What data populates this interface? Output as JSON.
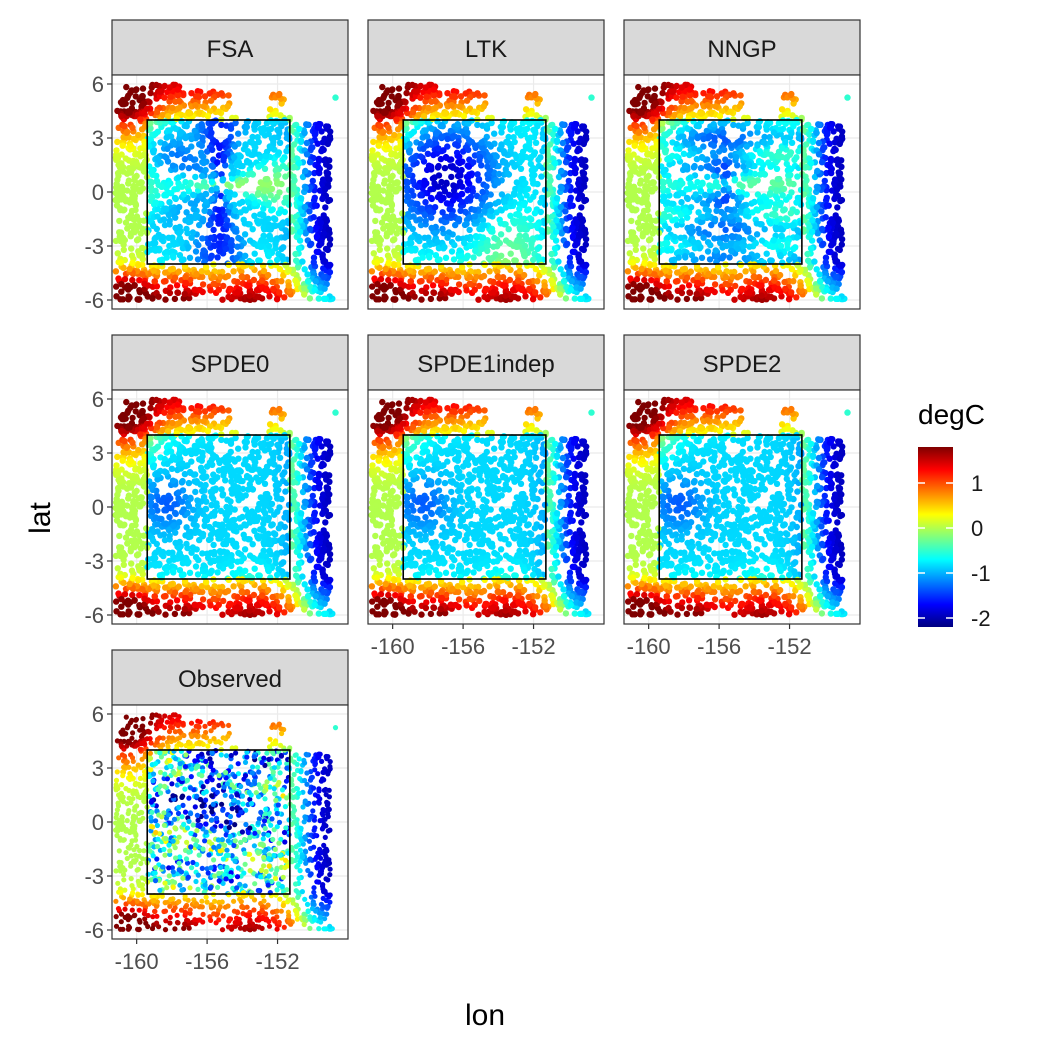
{
  "chart_data": {
    "type": "heatmap",
    "layout": "faceted 3-column grid of spatial scatter maps",
    "x": {
      "label": "lon",
      "range": [
        -161.4,
        -148.0
      ],
      "ticks": [
        -160,
        -156,
        -152
      ],
      "tick_labels": [
        "-160",
        "-156",
        "-152"
      ]
    },
    "y": {
      "label": "lat",
      "range": [
        -6.5,
        6.5
      ],
      "ticks": [
        6,
        3,
        0,
        -3,
        -6
      ],
      "tick_labels": [
        "6",
        "3",
        "0",
        "-3",
        "-6"
      ]
    },
    "colorbar": {
      "title": "degC",
      "range": [
        -2.2,
        1.8
      ],
      "ticks": [
        1,
        0,
        -1,
        -2
      ],
      "tick_labels": [
        "1",
        "0",
        "-1",
        "-2"
      ],
      "colors": [
        "#00007F",
        "#0000FF",
        "#007FFF",
        "#00FFFF",
        "#7FFF7F",
        "#FFFF00",
        "#FF7F00",
        "#FF0000",
        "#7F0000"
      ]
    },
    "box": {
      "lon": [
        -159.4,
        -151.3
      ],
      "lat": [
        -4,
        4
      ]
    },
    "facets": [
      {
        "name": "FSA",
        "pattern": "fsa"
      },
      {
        "name": "LTK",
        "pattern": "ltk"
      },
      {
        "name": "NNGP",
        "pattern": "nngp"
      },
      {
        "name": "SPDE0",
        "pattern": "spde"
      },
      {
        "name": "SPDE1indep",
        "pattern": "spde"
      },
      {
        "name": "SPDE2",
        "pattern": "spde"
      },
      {
        "name": "Observed",
        "pattern": "observed"
      }
    ]
  }
}
